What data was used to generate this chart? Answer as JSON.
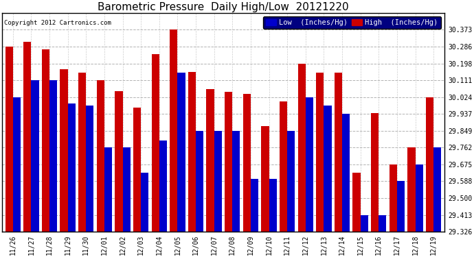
{
  "title": "Barometric Pressure  Daily High/Low  20121220",
  "copyright": "Copyright 2012 Cartronics.com",
  "legend_low": "Low  (Inches/Hg)",
  "legend_high": "High  (Inches/Hg)",
  "dates": [
    "11/26",
    "11/27",
    "11/28",
    "11/29",
    "11/30",
    "12/01",
    "12/02",
    "12/03",
    "12/04",
    "12/05",
    "12/06",
    "12/07",
    "12/08",
    "12/09",
    "12/10",
    "12/11",
    "12/12",
    "12/13",
    "12/14",
    "12/15",
    "12/16",
    "12/17",
    "12/18",
    "12/19"
  ],
  "high_values": [
    30.286,
    30.311,
    30.27,
    30.17,
    30.15,
    30.111,
    30.055,
    29.97,
    30.245,
    30.373,
    30.155,
    30.065,
    30.05,
    30.04,
    29.875,
    30.0,
    30.198,
    30.15,
    30.15,
    29.63,
    29.94,
    29.675,
    29.762,
    30.024
  ],
  "low_values": [
    30.024,
    30.111,
    30.111,
    29.99,
    29.98,
    29.762,
    29.762,
    29.63,
    29.8,
    30.15,
    29.85,
    29.85,
    29.85,
    29.6,
    29.6,
    29.849,
    30.024,
    29.98,
    29.937,
    29.413,
    29.413,
    29.588,
    29.675,
    29.762
  ],
  "ylim_min": 29.326,
  "ylim_max": 30.46,
  "yticks": [
    29.326,
    29.413,
    29.5,
    29.588,
    29.675,
    29.762,
    29.849,
    29.937,
    30.024,
    30.111,
    30.198,
    30.286,
    30.373
  ],
  "bg_color": "#ffffff",
  "low_color": "#0000cc",
  "high_color": "#cc0000",
  "bar_width": 0.42,
  "title_fontsize": 11,
  "tick_fontsize": 7,
  "legend_fontsize": 7.5,
  "figsize": [
    6.9,
    3.75
  ],
  "dpi": 100
}
